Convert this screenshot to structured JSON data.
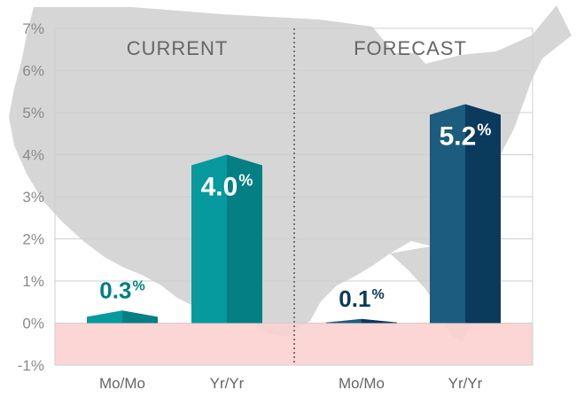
{
  "chart_data": {
    "type": "bar",
    "ylim": [
      -1,
      7
    ],
    "yticks": [
      "-1%",
      "0%",
      "1%",
      "2%",
      "3%",
      "4%",
      "5%",
      "6%",
      "7%"
    ],
    "grid": true,
    "background": "US map silhouette",
    "panels": [
      {
        "title": "CURRENT",
        "categories": [
          "Mo/Mo",
          "Yr/Yr"
        ],
        "values": [
          0.3,
          4.0
        ],
        "labels": [
          "0.3",
          "4.0"
        ],
        "color_front": "#06999e",
        "color_side": "#047f84",
        "label_colors": [
          "#047f84",
          "#ffffff"
        ]
      },
      {
        "title": "FORECAST",
        "categories": [
          "Mo/Mo",
          "Yr/Yr"
        ],
        "values": [
          0.1,
          5.2
        ],
        "labels": [
          "0.1",
          "5.2"
        ],
        "color_front": "#1c5c7e",
        "color_side": "#0a3a5c",
        "label_colors": [
          "#0a3a5c",
          "#ffffff"
        ]
      }
    ],
    "percent_sign": "%",
    "colors": {
      "negative_band": "#fcd0d0",
      "grid": "#cfcfcf",
      "map": "#d6d6d6",
      "divider": "#555555"
    }
  }
}
